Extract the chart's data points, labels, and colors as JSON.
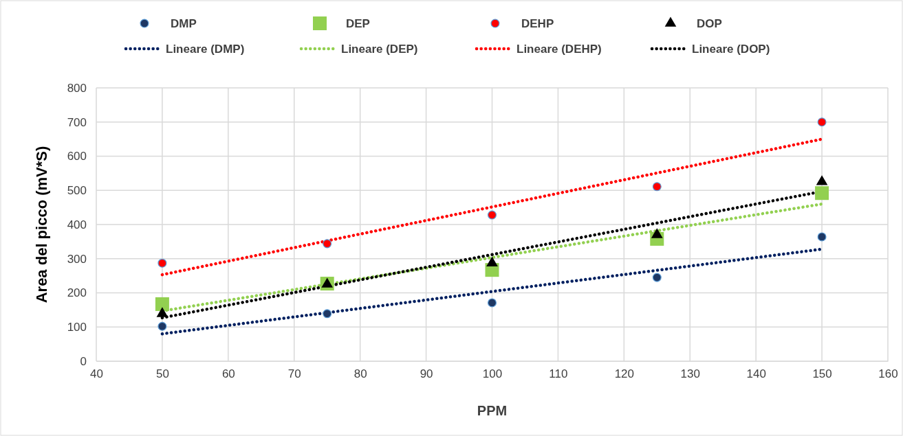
{
  "chart_data": {
    "type": "scatter",
    "xlabel": "PPM",
    "ylabel": "Area del picco (mV*S)",
    "xlim": [
      40,
      160
    ],
    "xticks": [
      40,
      50,
      60,
      70,
      80,
      90,
      100,
      110,
      120,
      130,
      140,
      150,
      160
    ],
    "ylim": [
      0,
      800
    ],
    "yticks": [
      0,
      100,
      200,
      300,
      400,
      500,
      600,
      700,
      800
    ],
    "grid": true,
    "legend": "top",
    "series": [
      {
        "name": "DMP",
        "marker": "circle",
        "color": "#1f3864",
        "x": [
          50,
          75,
          100,
          125,
          150
        ],
        "values": [
          102,
          139,
          171,
          245,
          364
        ]
      },
      {
        "name": "DEP",
        "marker": "square",
        "color": "#92d050",
        "x": [
          50,
          75,
          100,
          125,
          150
        ],
        "values": [
          167,
          227,
          267,
          358,
          492
        ]
      },
      {
        "name": "DEHP",
        "marker": "circle",
        "color": "#ff0000",
        "x": [
          50,
          75,
          100,
          125,
          150
        ],
        "values": [
          287,
          344,
          428,
          511,
          700
        ]
      },
      {
        "name": "DOP",
        "marker": "triangle",
        "color": "#000000",
        "x": [
          50,
          75,
          100,
          125,
          150
        ],
        "values": [
          139,
          225,
          287,
          370,
          525
        ]
      },
      {
        "name": "Lineare (DMP)",
        "type": "line",
        "line_style": "dotted",
        "color": "#002060",
        "x": [
          50,
          150
        ],
        "values": [
          80,
          328
        ]
      },
      {
        "name": "Lineare (DEP)",
        "type": "line",
        "line_style": "dotted",
        "color": "#92d050",
        "x": [
          50,
          150
        ],
        "values": [
          147,
          460
        ]
      },
      {
        "name": "Lineare (DEHP)",
        "type": "line",
        "line_style": "dotted",
        "color": "#ff0000",
        "x": [
          50,
          150
        ],
        "values": [
          253,
          650
        ]
      },
      {
        "name": "Lineare (DOP)",
        "type": "line",
        "line_style": "dotted",
        "color": "#000000",
        "x": [
          50,
          150
        ],
        "values": [
          127,
          497
        ]
      }
    ]
  }
}
